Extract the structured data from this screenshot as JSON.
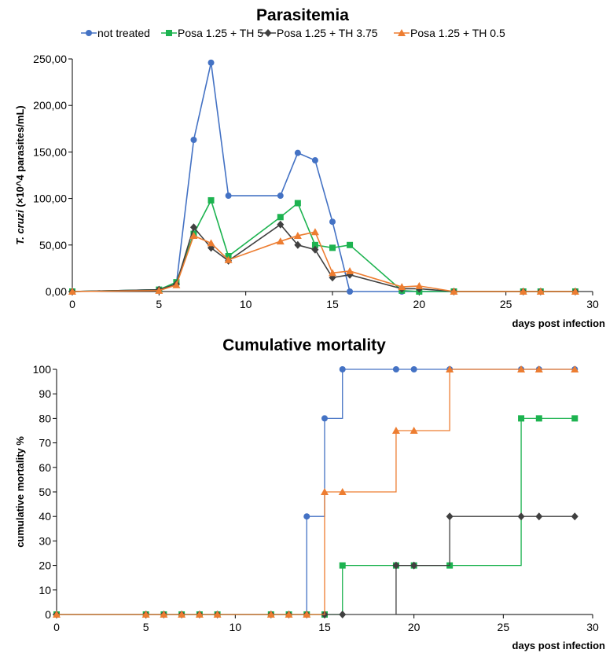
{
  "colors": {
    "not_treated": "#4472C4",
    "posa_th5": "#1DB350",
    "posa_th375": "#404040",
    "posa_th05": "#ED7D31"
  },
  "chart_data": [
    {
      "type": "line",
      "title": "Parasitemia",
      "ylabel_italic": "T. cruzi",
      "ylabel_rest": " (×10^4 parasites/mL)",
      "xlabel": "days post infection",
      "xlim": [
        0,
        30
      ],
      "ylim": [
        0,
        250
      ],
      "xticks": [
        "0",
        "5",
        "10",
        "15",
        "20",
        "25",
        "30"
      ],
      "yticks": [
        "0,00",
        "50,00",
        "100,00",
        "150,00",
        "200,00",
        "250,00"
      ],
      "legend_position": "top",
      "series": [
        {
          "name": "not treated",
          "color": "#4472C4",
          "marker": "circle",
          "points": [
            [
              0,
              0
            ],
            [
              5,
              2
            ],
            [
              6,
              8
            ],
            [
              7,
              163
            ],
            [
              8,
              246
            ],
            [
              9,
              103
            ],
            [
              12,
              103
            ],
            [
              13,
              149
            ],
            [
              14,
              141
            ],
            [
              15,
              75
            ],
            [
              16,
              0
            ],
            [
              19,
              0
            ],
            [
              20,
              0
            ],
            [
              22,
              0
            ],
            [
              26,
              0
            ],
            [
              27,
              0
            ],
            [
              29,
              0
            ]
          ]
        },
        {
          "name": "Posa 1.25 + TH 5",
          "color": "#1DB350",
          "marker": "square",
          "points": [
            [
              0,
              0
            ],
            [
              5,
              2
            ],
            [
              6,
              10
            ],
            [
              7,
              62
            ],
            [
              8,
              98
            ],
            [
              9,
              38
            ],
            [
              12,
              80
            ],
            [
              13,
              95
            ],
            [
              14,
              50
            ],
            [
              15,
              47
            ],
            [
              16,
              50
            ],
            [
              19,
              1
            ],
            [
              20,
              0
            ],
            [
              22,
              0
            ],
            [
              26,
              0
            ],
            [
              27,
              0
            ],
            [
              29,
              0
            ]
          ]
        },
        {
          "name": "Posa 1.25 + TH 3.75",
          "color": "#404040",
          "marker": "diamond",
          "points": [
            [
              0,
              0
            ],
            [
              5,
              2
            ],
            [
              6,
              8
            ],
            [
              7,
              69
            ],
            [
              8,
              47
            ],
            [
              9,
              33
            ],
            [
              12,
              72
            ],
            [
              13,
              50
            ],
            [
              14,
              45
            ],
            [
              15,
              15
            ],
            [
              16,
              18
            ],
            [
              19,
              3
            ],
            [
              20,
              3
            ],
            [
              22,
              0
            ],
            [
              26,
              0
            ],
            [
              27,
              0
            ],
            [
              29,
              0
            ]
          ]
        },
        {
          "name": "Posa 1.25 + TH 0.5",
          "color": "#ED7D31",
          "marker": "triangle",
          "points": [
            [
              0,
              0
            ],
            [
              5,
              1
            ],
            [
              6,
              7
            ],
            [
              7,
              60
            ],
            [
              8,
              52
            ],
            [
              9,
              34
            ],
            [
              12,
              54
            ],
            [
              13,
              60
            ],
            [
              14,
              64
            ],
            [
              15,
              20
            ],
            [
              16,
              22
            ],
            [
              19,
              5
            ],
            [
              20,
              6
            ],
            [
              22,
              0
            ],
            [
              26,
              0
            ],
            [
              27,
              0
            ],
            [
              29,
              0
            ]
          ]
        }
      ]
    },
    {
      "type": "line",
      "step": true,
      "title": "Cumulative mortality",
      "ylabel": "cumulative mortality %",
      "xlabel": "days post infection",
      "xlim": [
        0,
        30
      ],
      "ylim": [
        0,
        100
      ],
      "xticks": [
        "0",
        "5",
        "10",
        "15",
        "20",
        "25",
        "30"
      ],
      "yticks": [
        "0",
        "10",
        "20",
        "30",
        "40",
        "50",
        "60",
        "70",
        "80",
        "90",
        "100"
      ],
      "series": [
        {
          "name": "not treated",
          "color": "#4472C4",
          "marker": "circle",
          "points": [
            [
              0,
              0
            ],
            [
              5,
              0
            ],
            [
              6,
              0
            ],
            [
              7,
              0
            ],
            [
              8,
              0
            ],
            [
              9,
              0
            ],
            [
              12,
              0
            ],
            [
              13,
              0
            ],
            [
              14,
              40
            ],
            [
              15,
              80
            ],
            [
              16,
              100
            ],
            [
              19,
              100
            ],
            [
              20,
              100
            ],
            [
              22,
              100
            ],
            [
              26,
              100
            ],
            [
              27,
              100
            ],
            [
              29,
              100
            ]
          ]
        },
        {
          "name": "Posa 1.25 + TH 5",
          "color": "#1DB350",
          "marker": "square",
          "points": [
            [
              0,
              0
            ],
            [
              5,
              0
            ],
            [
              6,
              0
            ],
            [
              7,
              0
            ],
            [
              8,
              0
            ],
            [
              9,
              0
            ],
            [
              12,
              0
            ],
            [
              13,
              0
            ],
            [
              14,
              0
            ],
            [
              15,
              0
            ],
            [
              16,
              20
            ],
            [
              19,
              20
            ],
            [
              20,
              20
            ],
            [
              22,
              20
            ],
            [
              26,
              80
            ],
            [
              27,
              80
            ],
            [
              29,
              80
            ]
          ]
        },
        {
          "name": "Posa 1.25 + TH 3.75",
          "color": "#404040",
          "marker": "diamond",
          "points": [
            [
              0,
              0
            ],
            [
              5,
              0
            ],
            [
              6,
              0
            ],
            [
              7,
              0
            ],
            [
              8,
              0
            ],
            [
              9,
              0
            ],
            [
              12,
              0
            ],
            [
              13,
              0
            ],
            [
              14,
              0
            ],
            [
              15,
              0
            ],
            [
              16,
              0
            ],
            [
              19,
              20
            ],
            [
              20,
              20
            ],
            [
              22,
              40
            ],
            [
              26,
              40
            ],
            [
              27,
              40
            ],
            [
              29,
              40
            ]
          ]
        },
        {
          "name": "Posa 1.25 + TH 0.5",
          "color": "#ED7D31",
          "marker": "triangle",
          "points": [
            [
              0,
              0
            ],
            [
              5,
              0
            ],
            [
              6,
              0
            ],
            [
              7,
              0
            ],
            [
              8,
              0
            ],
            [
              9,
              0
            ],
            [
              12,
              0
            ],
            [
              13,
              0
            ],
            [
              14,
              0
            ],
            [
              15,
              50
            ],
            [
              16,
              50
            ],
            [
              19,
              75
            ],
            [
              20,
              75
            ],
            [
              22,
              100
            ],
            [
              26,
              100
            ],
            [
              27,
              100
            ],
            [
              29,
              100
            ]
          ]
        }
      ]
    }
  ]
}
